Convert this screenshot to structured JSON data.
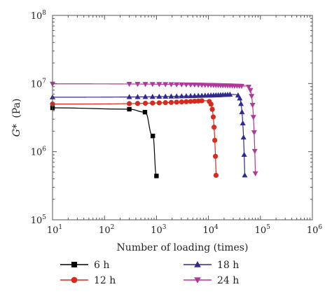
{
  "chart_data": {
    "type": "line",
    "xlabel": "Number of loading (times)",
    "ylabel_main": "G*",
    "ylabel_unit": "(Pa)",
    "x_scale": "log",
    "y_scale": "log",
    "xlim": [
      10,
      1000000
    ],
    "ylim": [
      100000,
      100000000
    ],
    "x_ticks": [
      {
        "base": "10",
        "exp": "1",
        "value": 10
      },
      {
        "base": "10",
        "exp": "2",
        "value": 100
      },
      {
        "base": "10",
        "exp": "3",
        "value": 1000
      },
      {
        "base": "10",
        "exp": "4",
        "value": 10000
      },
      {
        "base": "10",
        "exp": "5",
        "value": 100000
      },
      {
        "base": "10",
        "exp": "6",
        "value": 1000000
      }
    ],
    "y_ticks": [
      {
        "base": "10",
        "exp": "5",
        "value": 100000
      },
      {
        "base": "10",
        "exp": "6",
        "value": 1000000
      },
      {
        "base": "10",
        "exp": "7",
        "value": 10000000
      },
      {
        "base": "10",
        "exp": "8",
        "value": 100000000
      }
    ],
    "grid": false,
    "legend_position": "bottom",
    "series": [
      {
        "name": "6 h",
        "color": "#000000",
        "marker": "square",
        "x": [
          10,
          300,
          600,
          850,
          1000
        ],
        "y": [
          4400000,
          4200000,
          3800000,
          1700000,
          440000
        ],
        "pattern": "decline",
        "plateau_value": 4400000,
        "end_x": 1000,
        "min_y": 440000,
        "marker_spacing": 0.6
      },
      {
        "name": "12 h",
        "color": "#d62b1f",
        "marker": "circle",
        "x": [
          10,
          300,
          10000,
          14000,
          14000
        ],
        "y": [
          5000000,
          5000000,
          5600000,
          2200000,
          450000
        ],
        "pattern": "plateau-drop",
        "plateau_value": 5000000,
        "peak_value": 5600000,
        "end_x": 14000,
        "min_y": 450000,
        "marker_spacing": 0.1
      },
      {
        "name": "18 h",
        "color": "#2e2a8f",
        "marker": "triangle-up",
        "x": [
          10,
          300,
          30000,
          50000,
          50000
        ],
        "y": [
          6300000,
          6300000,
          6900000,
          2200000,
          450000
        ],
        "pattern": "plateau-drop",
        "plateau_value": 6300000,
        "peak_value": 6900000,
        "end_x": 50000,
        "min_y": 450000,
        "marker_spacing": 0.1
      },
      {
        "name": "24 h",
        "color": "#b0389a",
        "marker": "triangle-down",
        "x": [
          10,
          300,
          50000,
          80000,
          80000
        ],
        "y": [
          9900000,
          9900000,
          9200000,
          2000000,
          480000
        ],
        "pattern": "plateau-drop",
        "plateau_value": 9900000,
        "peak_value": 9200000,
        "end_x": 80000,
        "min_y": 480000,
        "marker_spacing": 0.1
      }
    ]
  }
}
